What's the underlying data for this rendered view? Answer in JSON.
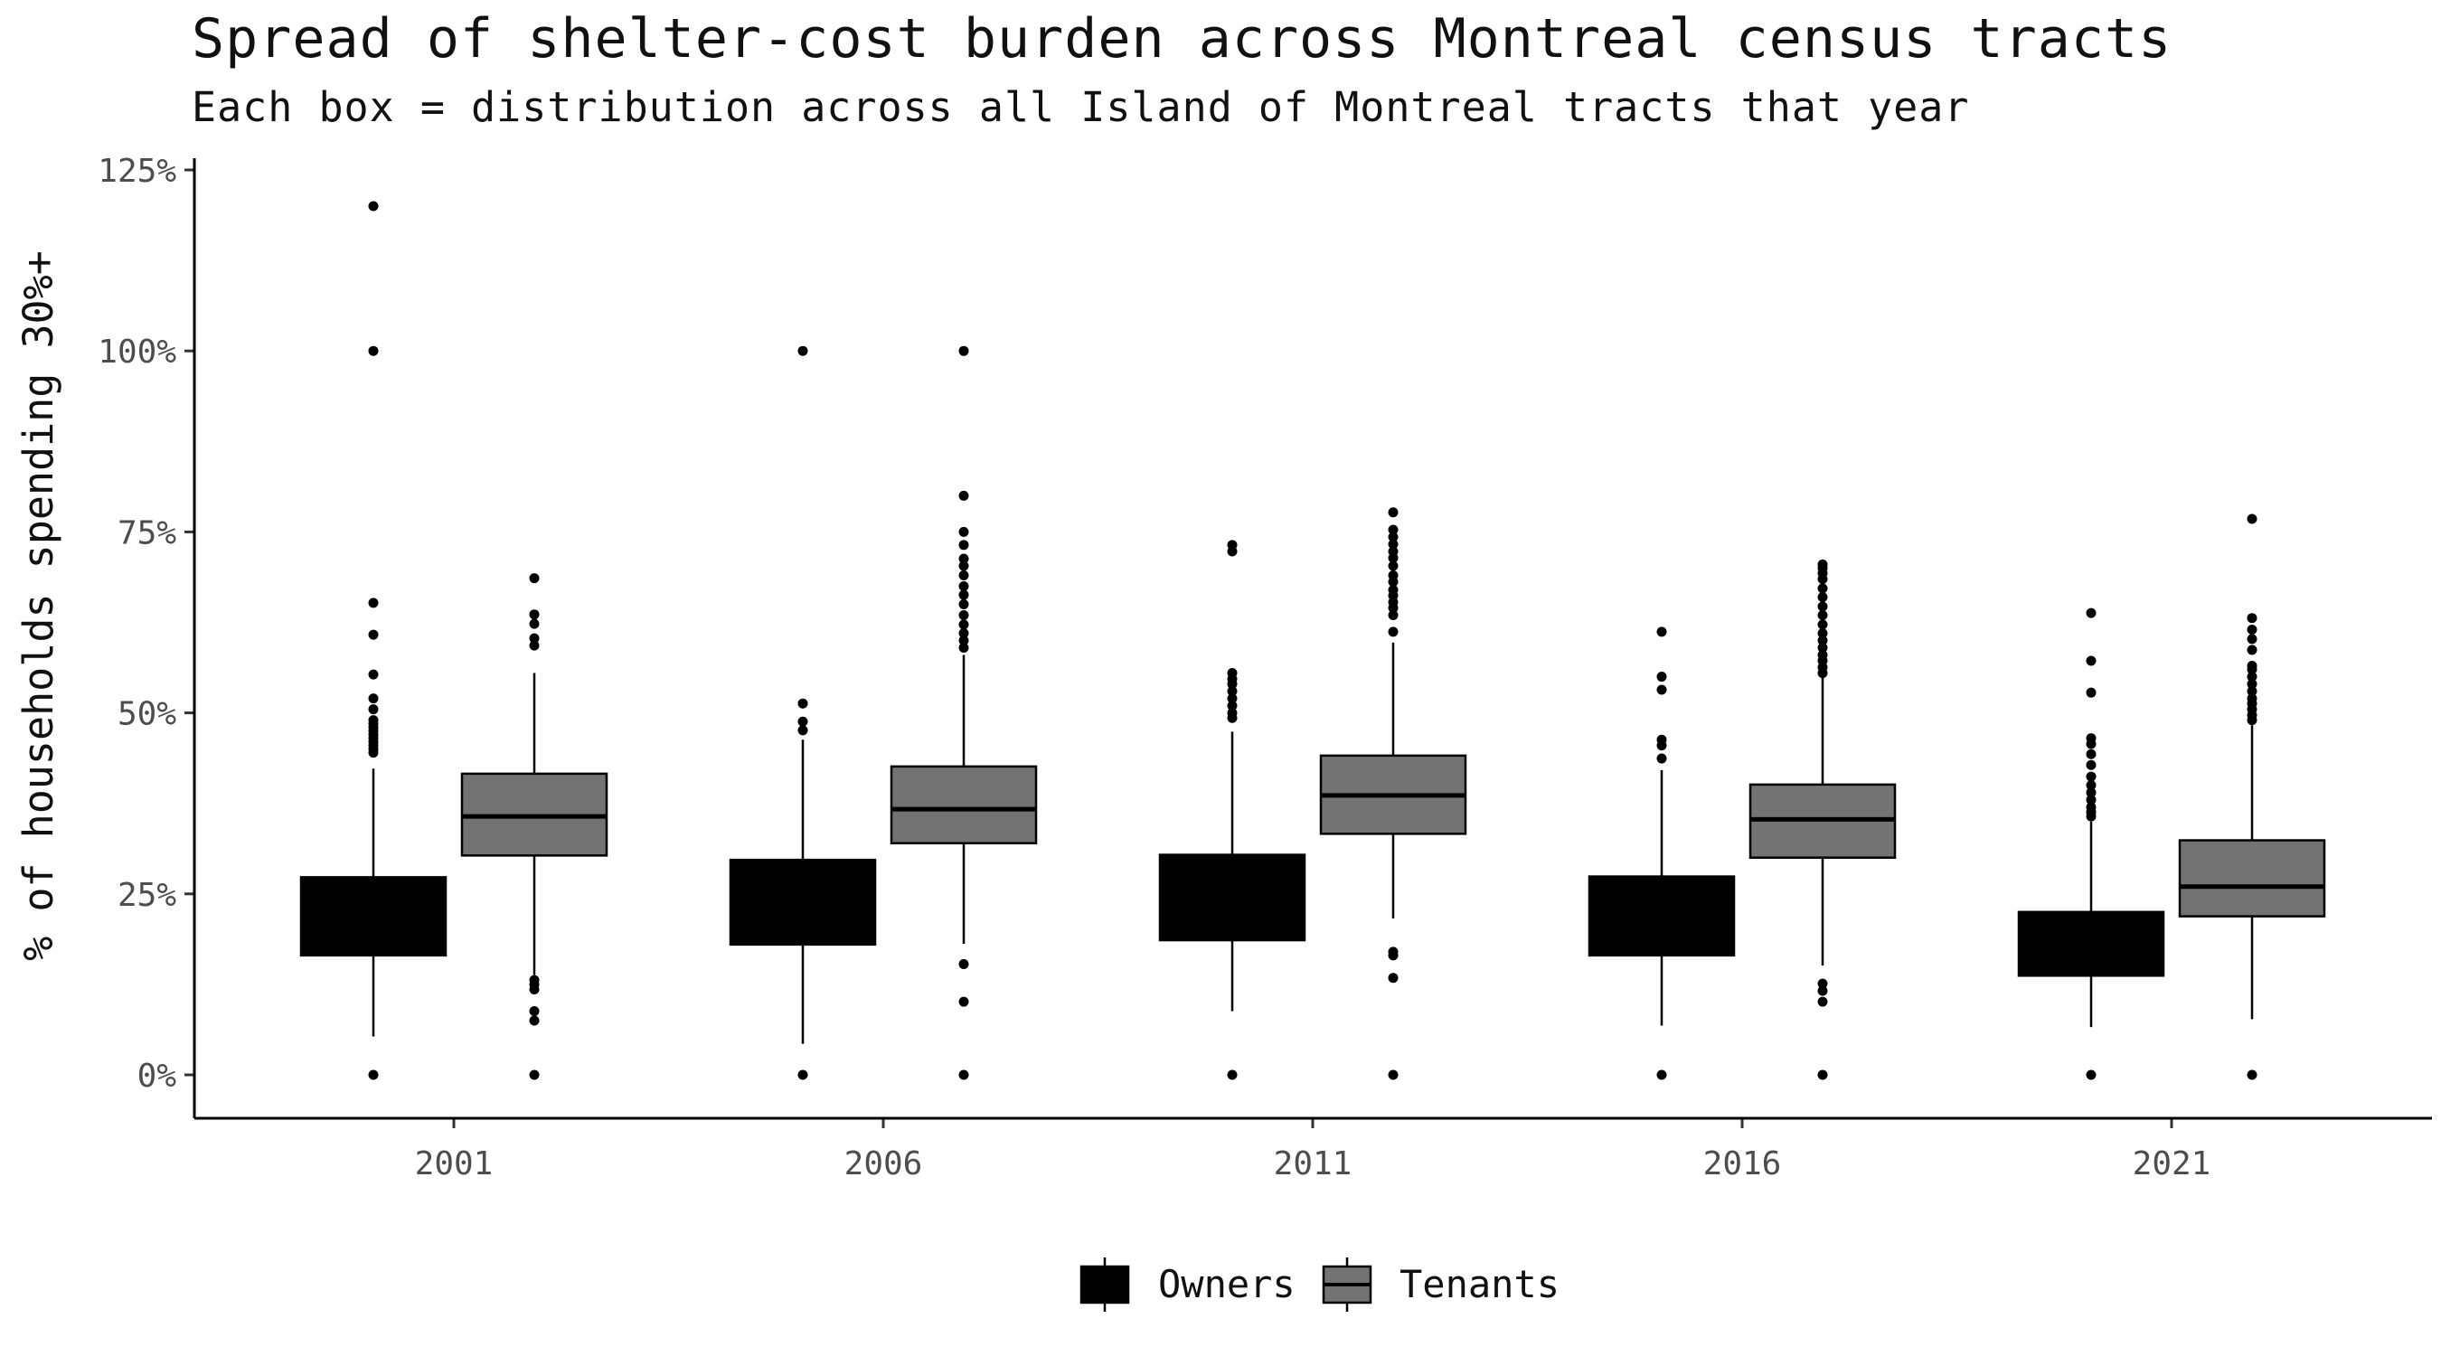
{
  "chart_data": {
    "type": "boxplot",
    "title": "Spread of shelter-cost burden across Montreal census tracts",
    "subtitle": "Each box = distribution across all Island of Montreal tracts that year",
    "ylabel": "% of households spending 30%+",
    "xlabel": "",
    "ylim": [
      -6,
      125
    ],
    "y_ticks": [
      0,
      25,
      50,
      75,
      100,
      125
    ],
    "y_tick_labels": [
      "0%",
      "25%",
      "50%",
      "75%",
      "100%",
      "125%"
    ],
    "categories": [
      "2001",
      "2006",
      "2011",
      "2016",
      "2021"
    ],
    "grid": false,
    "legend_position": "bottom",
    "series": [
      {
        "name": "Owners",
        "color": "#000000",
        "median_color": "#000000",
        "boxes": [
          {
            "whisker_low": 5.3,
            "q1": 16.5,
            "median": 22.0,
            "q3": 27.3,
            "whisker_high": 42.3,
            "outliers": [
              0,
              44.5,
              45,
              45.5,
              46,
              46.5,
              47,
              47.5,
              48,
              48.5,
              49,
              50.5,
              52,
              55.3,
              60.8,
              65.2,
              100,
              120
            ]
          },
          {
            "whisker_low": 4.3,
            "q1": 18.0,
            "median": 24.0,
            "q3": 29.7,
            "whisker_high": 46.3,
            "outliers": [
              0,
              47.6,
              48.8,
              51.3,
              100
            ]
          },
          {
            "whisker_low": 8.8,
            "q1": 18.6,
            "median": 25.0,
            "q3": 30.4,
            "whisker_high": 47.4,
            "outliers": [
              0,
              49.3,
              50,
              51,
              52,
              53,
              54,
              54.7,
              55.5,
              72.3,
              73.2
            ]
          },
          {
            "whisker_low": 6.8,
            "q1": 16.5,
            "median": 22.0,
            "q3": 27.4,
            "whisker_high": 42.1,
            "outliers": [
              0,
              43.7,
              45.5,
              46.3,
              53.2,
              55,
              61.2
            ]
          },
          {
            "whisker_low": 6.6,
            "q1": 13.7,
            "median": 18.0,
            "q3": 22.5,
            "whisker_high": 35.0,
            "outliers": [
              0,
              35.7,
              36.3,
              37,
              38,
              39,
              40,
              41.2,
              42.8,
              44.3,
              45.7,
              46.5,
              52.8,
              57.2,
              63.8
            ]
          }
        ]
      },
      {
        "name": "Tenants",
        "color": "#737373",
        "median_color": "#000000",
        "boxes": [
          {
            "whisker_low": 13.8,
            "q1": 30.3,
            "median": 35.7,
            "q3": 41.6,
            "whisker_high": 55.5,
            "outliers": [
              0,
              7.5,
              8.8,
              11.8,
              12.5,
              13.1,
              59.3,
              60.3,
              62.3,
              63.6,
              68.6
            ]
          },
          {
            "whisker_low": 18.1,
            "q1": 32.0,
            "median": 36.7,
            "q3": 42.6,
            "whisker_high": 58.0,
            "outliers": [
              0,
              10.1,
              15.3,
              59,
              60,
              61,
              62.2,
              63.5,
              65,
              66.3,
              67.5,
              69,
              70.3,
              71.3,
              73.2,
              75,
              80,
              100
            ]
          },
          {
            "whisker_low": 21.6,
            "q1": 33.3,
            "median": 38.6,
            "q3": 44.1,
            "whisker_high": 59.7,
            "outliers": [
              0,
              13.4,
              16.5,
              17,
              61.2,
              63.5,
              64.5,
              65.3,
              66.2,
              67,
              68.1,
              69,
              70.3,
              71.4,
              72.3,
              73.3,
              74.3,
              75.3,
              77.7
            ]
          },
          {
            "whisker_low": 15.1,
            "q1": 30.0,
            "median": 35.3,
            "q3": 40.1,
            "whisker_high": 55.0,
            "outliers": [
              0,
              10.1,
              11.6,
              12.6,
              55.5,
              56.3,
              57.2,
              58,
              59,
              60,
              61,
              62.2,
              63.5,
              64.7,
              66,
              67.2,
              68.5,
              69.3,
              70,
              70.5
            ]
          },
          {
            "whisker_low": 7.7,
            "q1": 21.9,
            "median": 26.0,
            "q3": 32.4,
            "whisker_high": 48.3,
            "outliers": [
              0,
              49,
              49.7,
              50.5,
              51.3,
              52,
              53,
              54,
              55,
              56,
              56.5,
              58.7,
              60.2,
              61.5,
              63.1,
              76.8
            ]
          }
        ]
      }
    ]
  },
  "legend": {
    "items": [
      {
        "label": "Owners",
        "color": "#000000"
      },
      {
        "label": "Tenants",
        "color": "#737373"
      }
    ]
  }
}
